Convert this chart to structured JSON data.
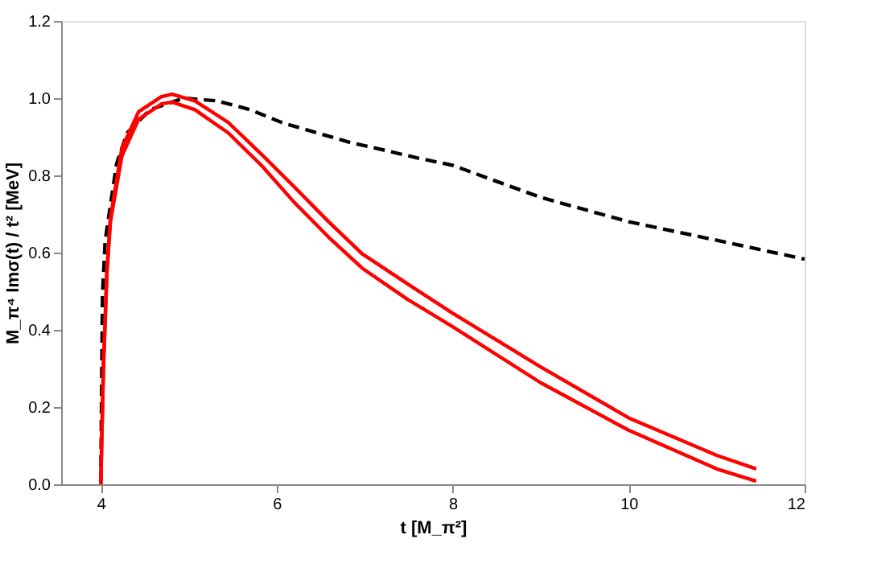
{
  "chart_data": {
    "type": "line",
    "xlabel": "t [M_π²]",
    "ylabel": "M_π⁴ Imσ(t) / t² [MeV]",
    "xlim": [
      3.55,
      12
    ],
    "xticks": [
      4,
      6,
      8,
      10,
      12
    ],
    "ylim": [
      0,
      1.2
    ],
    "yticks": [
      {
        "value": 0,
        "label": "0.0"
      },
      {
        "value": 0.2,
        "label": "0.2"
      },
      {
        "value": 0.4,
        "label": "0.4"
      },
      {
        "value": 0.6,
        "label": "0.6"
      },
      {
        "value": 0.8,
        "label": "0.8"
      },
      {
        "value": 1.0,
        "label": "1.0"
      },
      {
        "value": 1.2,
        "label": "1.2"
      }
    ],
    "grid": false,
    "legend": false,
    "marker": "none",
    "series": [
      {
        "color": "#000000",
        "line_style": "dashed",
        "x": [
          4.0,
          4.02,
          4.05,
          4.18,
          4.3,
          4.56,
          4.94,
          5.32,
          5.7,
          6.08,
          6.46,
          6.84,
          7.23,
          7.6,
          8.0,
          9.0,
          10.0,
          11.0,
          12.0
        ],
        "values": [
          0,
          0.49,
          0.63,
          0.83,
          0.91,
          0.97,
          1.0,
          0.993,
          0.97,
          0.935,
          0.91,
          0.885,
          0.865,
          0.845,
          0.826,
          0.743,
          0.68,
          0.632,
          0.583
        ]
      },
      {
        "color": "#ff0000",
        "line_style": "solid",
        "x": [
          4.0,
          4.03,
          4.07,
          4.11,
          4.24,
          4.43,
          4.69,
          4.81,
          5.07,
          5.45,
          5.83,
          6.2,
          6.59,
          6.97,
          7.48,
          8.0,
          9.0,
          10.0,
          11.0,
          11.45
        ],
        "values": [
          0,
          0.3,
          0.55,
          0.69,
          0.87,
          0.965,
          1.004,
          1.01,
          0.993,
          0.937,
          0.854,
          0.77,
          0.68,
          0.597,
          0.52,
          0.443,
          0.304,
          0.172,
          0.075,
          0.04
        ]
      },
      {
        "color": "#ff0000",
        "line_style": "solid",
        "x": [
          4.0,
          4.03,
          4.07,
          4.11,
          4.24,
          4.43,
          4.69,
          4.81,
          5.07,
          5.45,
          5.83,
          6.2,
          6.59,
          6.97,
          7.48,
          8.0,
          9.0,
          10.0,
          11.0,
          11.45
        ],
        "values": [
          0,
          0.3,
          0.55,
          0.68,
          0.85,
          0.945,
          0.985,
          0.99,
          0.97,
          0.91,
          0.825,
          0.73,
          0.64,
          0.56,
          0.48,
          0.408,
          0.263,
          0.14,
          0.04,
          0.008
        ]
      }
    ]
  }
}
